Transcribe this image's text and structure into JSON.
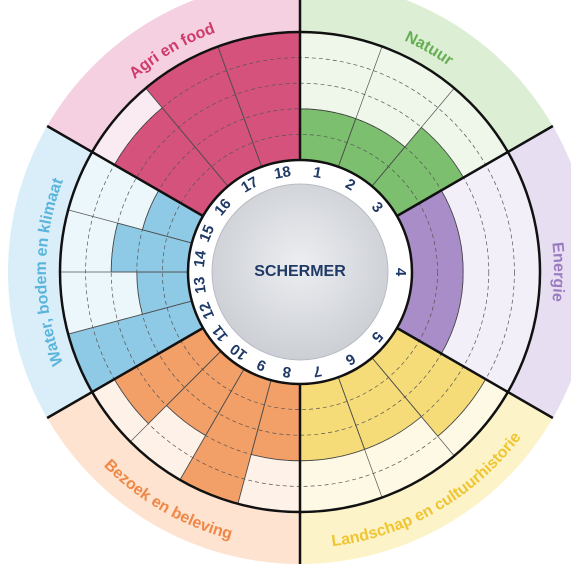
{
  "chart_data": {
    "type": "radial_bar",
    "title": "SCHERMER",
    "rlim": [
      0,
      5
    ],
    "rticks": [
      1,
      2,
      3,
      4,
      5
    ],
    "groups": [
      {
        "name": "Natuur",
        "color": "#7cbf6f",
        "band_color": "#dcefd5",
        "fill_color": "#eef7ea",
        "label_color": "#67ad52",
        "labels": [
          "1",
          "2",
          "3"
        ],
        "values": [
          2,
          2,
          3
        ]
      },
      {
        "name": "Energie",
        "color": "#a88dc8",
        "band_color": "#e7def1",
        "fill_color": "#f3eff8",
        "label_color": "#9a7bc0",
        "labels": [
          "4"
        ],
        "values": [
          2
        ]
      },
      {
        "name": "Landschap en cultuurhistorie",
        "color": "#f6dc78",
        "band_color": "#fdf3c9",
        "fill_color": "#fef9e4",
        "label_color": "#efc532",
        "labels": [
          "5",
          "6",
          "7"
        ],
        "values": [
          4,
          3,
          3
        ]
      },
      {
        "name": "Bezoek en beleving",
        "color": "#f29f68",
        "band_color": "#fde3d0",
        "fill_color": "#fef1e8",
        "label_color": "#ef8746",
        "labels": [
          "8",
          "9",
          "10",
          "11"
        ],
        "values": [
          3,
          5,
          3,
          4
        ]
      },
      {
        "name": "Water, bodem en klimaat",
        "color": "#8ecae5",
        "band_color": "#d9eef8",
        "fill_color": "#ecf7fc",
        "label_color": "#5ab5dc",
        "labels": [
          "12",
          "13",
          "14",
          "15"
        ],
        "values": [
          5,
          2,
          3,
          2
        ]
      },
      {
        "name": "Agri en food",
        "color": "#d5527d",
        "band_color": "#f4d0e0",
        "fill_color": "#faeaf1",
        "label_color": "#d03a6b",
        "labels": [
          "16",
          "17",
          "18"
        ],
        "values": [
          4,
          5,
          5
        ]
      }
    ]
  }
}
